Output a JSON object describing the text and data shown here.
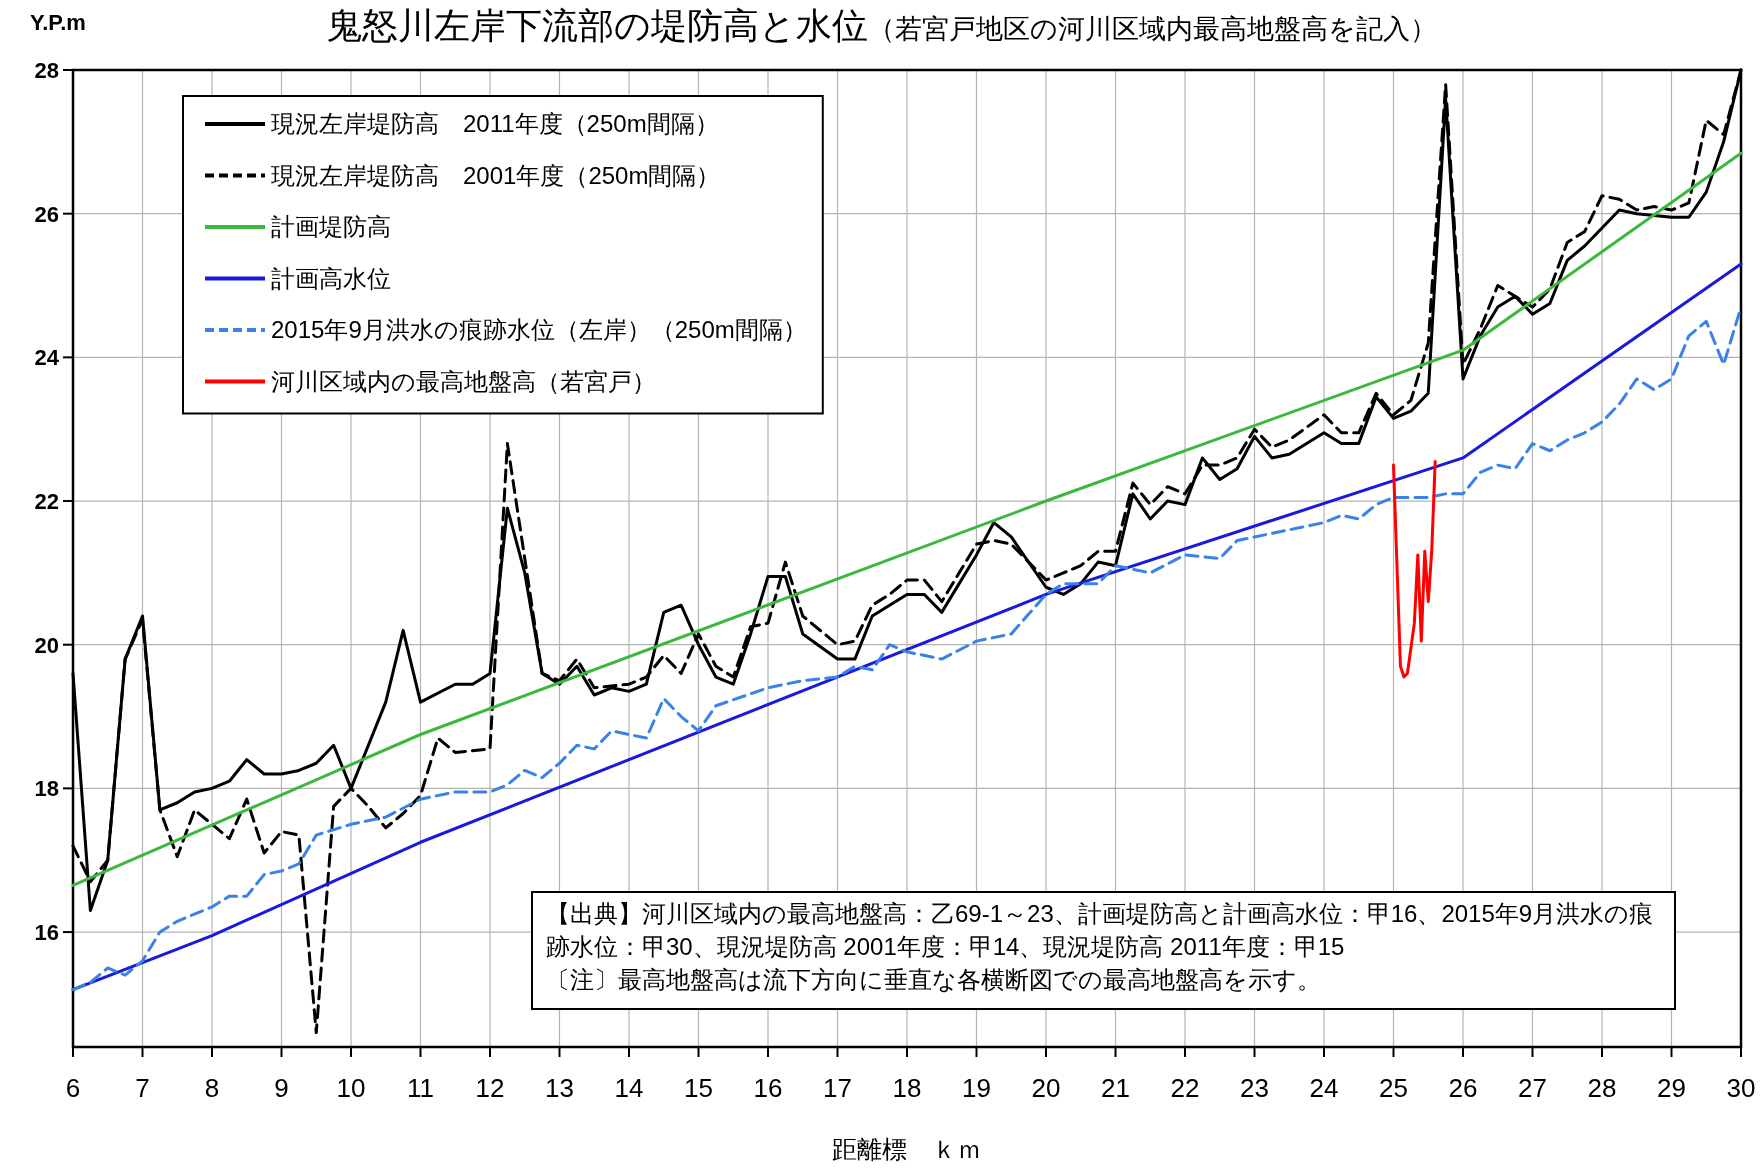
{
  "chart_data": {
    "type": "line",
    "title": "鬼怒川左岸下流部の堤防高と水位",
    "subtitle": "（若宮戸地区の河川区域内最高地盤高を記入）",
    "xlabel": "距離標　ｋｍ",
    "ylabel": "Y.P.m",
    "xlim": [
      6,
      30
    ],
    "ylim": [
      14.4,
      28
    ],
    "xticks": [
      6,
      7,
      8,
      9,
      10,
      11,
      12,
      13,
      14,
      15,
      16,
      17,
      18,
      19,
      20,
      21,
      22,
      23,
      24,
      25,
      26,
      27,
      28,
      29,
      30
    ],
    "yticks": [
      16,
      18,
      20,
      22,
      24,
      26,
      28
    ],
    "grid": true,
    "legend": "top left",
    "series": [
      {
        "name": "現況左岸堤防高　2011年度（250m間隔）",
        "color": "#000000",
        "line_style": "solid",
        "x": [
          6,
          6.25,
          6.5,
          6.75,
          7,
          7.25,
          7.5,
          7.75,
          8,
          8.25,
          8.5,
          8.75,
          9,
          9.25,
          9.5,
          9.75,
          10,
          10.5,
          10.75,
          11,
          11.5,
          11.75,
          12,
          12.25,
          12.5,
          12.75,
          13,
          13.25,
          13.5,
          13.75,
          14,
          14.25,
          14.5,
          14.75,
          15,
          15.25,
          15.5,
          15.75,
          16,
          16.25,
          16.5,
          17,
          17.25,
          17.5,
          18,
          18.25,
          18.5,
          18.75,
          19,
          19.25,
          19.5,
          20,
          20.25,
          20.5,
          20.75,
          21,
          21.25,
          21.5,
          21.75,
          22,
          22.25,
          22.5,
          22.75,
          23,
          23.25,
          23.5,
          24,
          24.25,
          24.5,
          24.75,
          25,
          25.25,
          25.5,
          25.75,
          26,
          26.25,
          26.5,
          26.75,
          27,
          27.25,
          27.5,
          27.75,
          28,
          28.25,
          28.5,
          29,
          29.25,
          29.5,
          29.75,
          30
        ],
        "values": [
          19.6,
          16.3,
          17.0,
          19.8,
          20.4,
          17.7,
          17.8,
          17.95,
          18.0,
          18.1,
          18.4,
          18.2,
          18.2,
          18.25,
          18.35,
          18.6,
          18.0,
          19.2,
          20.2,
          19.2,
          19.45,
          19.45,
          19.6,
          21.9,
          21.0,
          19.6,
          19.45,
          19.7,
          19.3,
          19.4,
          19.35,
          19.45,
          20.45,
          20.55,
          20.0,
          19.55,
          19.45,
          20.15,
          20.95,
          20.95,
          20.15,
          19.8,
          19.8,
          20.4,
          20.7,
          20.7,
          20.45,
          20.85,
          21.25,
          21.7,
          21.5,
          20.8,
          20.7,
          20.85,
          21.15,
          21.1,
          22.1,
          21.75,
          22.0,
          21.95,
          22.6,
          22.3,
          22.45,
          22.9,
          22.6,
          22.65,
          22.95,
          22.8,
          22.8,
          23.45,
          23.15,
          23.25,
          23.5,
          27.6,
          23.7,
          24.3,
          24.7,
          24.85,
          24.6,
          24.75,
          25.35,
          25.55,
          25.8,
          26.05,
          26.0,
          25.95,
          25.95,
          26.3,
          27.0,
          28.0
        ]
      },
      {
        "name": "現況左岸堤防高　2001年度（250m間隔）",
        "color": "#000000",
        "line_style": "dashed",
        "x": [
          6,
          6.25,
          6.5,
          6.75,
          7,
          7.25,
          7.5,
          7.75,
          8,
          8.25,
          8.5,
          8.75,
          9,
          9.25,
          9.5,
          9.75,
          10,
          10.25,
          10.5,
          10.75,
          11,
          11.25,
          11.5,
          12,
          12.25,
          12.5,
          12.75,
          13,
          13.25,
          13.5,
          14,
          14.25,
          14.5,
          14.75,
          15,
          15.25,
          15.5,
          15.75,
          16,
          16.25,
          16.5,
          17,
          17.25,
          17.5,
          17.75,
          18,
          18.25,
          18.5,
          18.75,
          19,
          19.25,
          19.5,
          20,
          20.25,
          20.5,
          20.75,
          21,
          21.25,
          21.5,
          21.75,
          22,
          22.25,
          22.5,
          22.75,
          23,
          23.25,
          23.5,
          24,
          24.25,
          24.5,
          24.75,
          25,
          25.25,
          25.5,
          25.75,
          26,
          26.25,
          26.5,
          26.75,
          27,
          27.25,
          27.5,
          27.75,
          28,
          28.25,
          28.5,
          28.75,
          29,
          29.25,
          29.5,
          29.75,
          30
        ],
        "values": [
          17.2,
          16.7,
          17.0,
          19.8,
          20.35,
          17.7,
          17.05,
          17.7,
          17.5,
          17.3,
          17.85,
          17.1,
          17.4,
          17.35,
          14.6,
          17.75,
          18.0,
          17.75,
          17.45,
          17.65,
          17.9,
          18.7,
          18.5,
          18.55,
          22.8,
          21.2,
          19.6,
          19.5,
          19.8,
          19.4,
          19.45,
          19.55,
          19.85,
          19.6,
          20.15,
          19.7,
          19.55,
          20.25,
          20.3,
          21.15,
          20.4,
          20.0,
          20.05,
          20.55,
          20.7,
          20.9,
          20.9,
          20.6,
          21.0,
          21.4,
          21.45,
          21.4,
          20.9,
          21.0,
          21.1,
          21.3,
          21.3,
          22.25,
          21.95,
          22.2,
          22.1,
          22.5,
          22.5,
          22.6,
          23.0,
          22.75,
          22.85,
          23.2,
          22.95,
          22.95,
          23.5,
          23.2,
          23.4,
          24.2,
          27.8,
          23.9,
          24.4,
          25.0,
          24.85,
          24.7,
          24.95,
          25.6,
          25.75,
          26.25,
          26.2,
          26.05,
          26.1,
          26.05,
          26.15,
          27.3,
          27.1,
          28.0
        ]
      },
      {
        "name": "計画堤防高",
        "color": "#3cb83c",
        "line_style": "solid",
        "x": [
          6,
          11,
          20,
          26,
          30
        ],
        "values": [
          16.65,
          18.75,
          22.0,
          24.1,
          26.84
        ]
      },
      {
        "name": "計画高水位",
        "color": "#1a1adc",
        "line_style": "solid",
        "x": [
          6,
          8,
          11,
          20,
          26,
          30
        ],
        "values": [
          15.2,
          15.95,
          17.25,
          20.7,
          22.6,
          25.3
        ]
      },
      {
        "name": "2015年9月洪水の痕跡水位（左岸）（250m間隔）",
        "color": "#3b82e6",
        "line_style": "dashed",
        "x": [
          6,
          6.25,
          6.5,
          6.75,
          7,
          7.25,
          7.5,
          8,
          8.25,
          8.5,
          8.75,
          9,
          9.25,
          9.5,
          10,
          10.5,
          11,
          11.5,
          12,
          12.25,
          12.5,
          12.75,
          13,
          13.25,
          13.5,
          13.75,
          14,
          14.25,
          14.5,
          14.75,
          15,
          15.25,
          16,
          16.5,
          17,
          17.25,
          17.5,
          17.75,
          18,
          18.5,
          19,
          19.5,
          20,
          20.25,
          20.75,
          21,
          21.5,
          22,
          22.5,
          22.75,
          23,
          23.5,
          24,
          24.25,
          24.5,
          24.75,
          25,
          25.5,
          25.75,
          26,
          26.25,
          26.5,
          26.75,
          27,
          27.25,
          27.5,
          27.75,
          28,
          28.25,
          28.5,
          28.75,
          29,
          29.25,
          29.5,
          29.75,
          30
        ],
        "values": [
          15.2,
          15.3,
          15.5,
          15.4,
          15.6,
          16.0,
          16.15,
          16.35,
          16.5,
          16.5,
          16.8,
          16.85,
          16.95,
          17.35,
          17.5,
          17.6,
          17.85,
          17.95,
          17.95,
          18.05,
          18.25,
          18.15,
          18.35,
          18.6,
          18.55,
          18.8,
          18.75,
          18.7,
          19.25,
          19.0,
          18.8,
          19.15,
          19.4,
          19.5,
          19.55,
          19.7,
          19.65,
          20.0,
          19.9,
          19.8,
          20.05,
          20.15,
          20.7,
          20.85,
          20.85,
          21.1,
          21.0,
          21.25,
          21.2,
          21.45,
          21.5,
          21.6,
          21.7,
          21.8,
          21.75,
          21.95,
          22.05,
          22.05,
          22.1,
          22.1,
          22.4,
          22.5,
          22.45,
          22.8,
          22.7,
          22.85,
          22.95,
          23.1,
          23.35,
          23.7,
          23.55,
          23.7,
          24.3,
          24.5,
          23.9,
          24.7
        ]
      },
      {
        "name": "河川区域内の最高地盤高（若宮戸）",
        "color": "#ff0000",
        "line_style": "solid",
        "x": [
          25.0,
          25.1,
          25.15,
          25.2,
          25.3,
          25.35,
          25.4,
          25.45,
          25.5,
          25.55,
          25.6
        ],
        "values": [
          22.5,
          19.7,
          19.55,
          19.6,
          20.3,
          21.25,
          20.05,
          21.3,
          20.6,
          21.3,
          22.55
        ]
      }
    ],
    "annotations": [
      "【出典】河川区域内の最高地盤高：乙69-1～23、計画堤防高と計画高水位：甲16、2015年9月洪水の痕跡水位：甲30、現況堤防高 2001年度：甲14、現況堤防高 2011年度：甲15",
      "〔注〕最高地盤高は流下方向に垂直な各横断図での最高地盤高を示す。"
    ]
  }
}
